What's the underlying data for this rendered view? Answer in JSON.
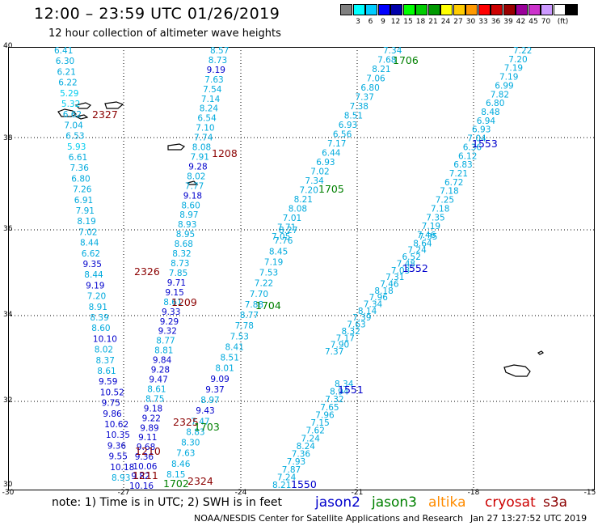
{
  "title": "12:00 – 23:59 UTC 01/26/2019",
  "subtitle": "12 hour collection of altimeter wave heights",
  "colorbar": {
    "unit": "(ft)",
    "colors": [
      "#808080",
      "#00ffff",
      "#00ccff",
      "#0000ff",
      "#0000aa",
      "#00ff00",
      "#00cc00",
      "#009900",
      "#ffff00",
      "#ffcc00",
      "#ff9900",
      "#ff0000",
      "#cc0000",
      "#990000",
      "#990099",
      "#cc33cc",
      "#cc99ff",
      "#ffffff",
      "#000000"
    ],
    "labels": [
      "3",
      "6",
      "9",
      "12",
      "15",
      "18",
      "21",
      "24",
      "27",
      "30",
      "33",
      "36",
      "39",
      "42",
      "45",
      "70"
    ]
  },
  "axes": {
    "lat_labels": [
      "40",
      "38",
      "36",
      "34",
      "32",
      "30"
    ],
    "lon_labels": [
      "-30",
      "-27",
      "-24",
      "-21",
      "-18",
      "-15"
    ]
  },
  "tracks": [
    {
      "id": "2327",
      "color": "#00b4e8",
      "values": [
        "6.41",
        "6.30",
        "6.21",
        "6.22",
        "5.29",
        "5.32",
        "6.62",
        "7.04",
        "6.53",
        "5.93",
        "6.61",
        "7.36",
        "6.80",
        "7.26",
        "6.91",
        "7.91",
        "8.19",
        "7.02",
        "8.44",
        "6.62",
        "9.35",
        "8.44",
        "9.19",
        "7.20",
        "8.91",
        "8.39",
        "8.60",
        "10.10",
        "8.02",
        "8.37",
        "8.61",
        "9.59",
        "10.52",
        "9.75",
        "9.86",
        "10.62",
        "10.35",
        "9.36",
        "9.55",
        "10.18",
        "8.93"
      ]
    },
    {
      "id": "1208",
      "color": "#00b4e8",
      "values": [
        "8.57",
        "8.73",
        "9.19",
        "7.63",
        "7.54",
        "7.14",
        "8.24",
        "6.54",
        "7.10",
        "7.74",
        "8.08",
        "7.91",
        "9.28",
        "8.02",
        "7.77",
        "9.18",
        "8.60",
        "8.97",
        "8.93",
        "8.95",
        "8.68",
        "8.32",
        "8.73",
        "7.85",
        "9.71",
        "9.15",
        "8.61",
        "9.33",
        "9.29",
        "9.32",
        "8.77",
        "8.81",
        "9.84",
        "9.28",
        "9.47",
        "8.61",
        "8.75",
        "9.18",
        "9.22",
        "9.89",
        "9.11",
        "9.68",
        "9.36",
        "10.06",
        "9.82",
        "10.16"
      ]
    },
    {
      "id": "1703",
      "color": "#00b4e8",
      "values": [
        "8.27",
        "7.76",
        "8.45",
        "7.19",
        "7.53",
        "7.22",
        "7.70",
        "7.88",
        "8.77",
        "7.78",
        "7.53",
        "8.41",
        "8.51",
        "8.01",
        "9.09",
        "9.37",
        "8.97",
        "9.43",
        "7.47",
        "8.83",
        "8.30",
        "7.63",
        "8.46",
        "8.15"
      ]
    },
    {
      "id": "1705",
      "color": "#00b4e8",
      "values": [
        "7.34",
        "7.68",
        "8.21",
        "7.06",
        "6.80",
        "7.37",
        "7.38",
        "8.51",
        "6.93",
        "6.56",
        "7.17",
        "6.44",
        "6.93",
        "7.02",
        "7.34",
        "7.20",
        "8.21",
        "8.08",
        "7.01",
        "7.71",
        "7.05"
      ]
    },
    {
      "id": "1551",
      "color": "#00b4e8",
      "values": [
        "8.34",
        "8.94",
        "7.32",
        "7.65",
        "7.96",
        "7.15",
        "7.62",
        "7.24",
        "8.24",
        "7.36",
        "7.93",
        "7.87",
        "7.24",
        "8.21"
      ]
    },
    {
      "id": "1552",
      "color": "#00b4e8",
      "values": [
        "7.35",
        "8.64",
        "7.24",
        "6.52",
        "7.48",
        "7.03",
        "7.31",
        "7.46",
        "8.18",
        "7.96",
        "7.34",
        "8.14",
        "7.39",
        "7.63",
        "8.32",
        "7.17",
        "7.90",
        "7.37"
      ]
    },
    {
      "id": "1553",
      "color": "#00b4e8",
      "values": [
        "7.22",
        "7.20",
        "7.19",
        "7.19",
        "6.99",
        "7.82",
        "6.80",
        "8.48",
        "6.94",
        "6.93",
        "7.04",
        "6.36",
        "6.12",
        "6.83",
        "7.21",
        "6.72",
        "7.18",
        "7.25",
        "7.18",
        "7.35",
        "7.19",
        "7.46"
      ]
    }
  ],
  "track_labels": [
    {
      "text": "2327",
      "color": "#8b0000"
    },
    {
      "text": "1208",
      "color": "#8b0000"
    },
    {
      "text": "1706",
      "color": "#008000"
    },
    {
      "text": "1553",
      "color": "#0000cc"
    },
    {
      "text": "1705",
      "color": "#008000"
    },
    {
      "text": "2326",
      "color": "#8b0000"
    },
    {
      "text": "1552",
      "color": "#0000cc"
    },
    {
      "text": "1209",
      "color": "#8b0000"
    },
    {
      "text": "1704",
      "color": "#008000"
    },
    {
      "text": "1551",
      "color": "#0000cc"
    },
    {
      "text": "2325",
      "color": "#8b0000"
    },
    {
      "text": "1703",
      "color": "#008000"
    },
    {
      "text": "1210",
      "color": "#8b0000"
    },
    {
      "text": "1211",
      "color": "#8b0000"
    },
    {
      "text": "2324",
      "color": "#8b0000"
    },
    {
      "text": "1702",
      "color": "#008000"
    },
    {
      "text": "1550",
      "color": "#0000cc"
    }
  ],
  "note": "note: 1) Time is in UTC; 2) SWH is in feet",
  "legend": [
    {
      "name": "jason2",
      "color": "#0000cc"
    },
    {
      "name": "jason3",
      "color": "#008000"
    },
    {
      "name": "altika",
      "color": "#ff8c00"
    },
    {
      "name": "cryosat",
      "color": "#cc0000"
    },
    {
      "name": "s3a",
      "color": "#8b0000"
    }
  ],
  "footer": "NOAA/NESDIS Center for Satellite Applications and Research",
  "footer_time": "Jan 27 13:27:52 UTC 2019"
}
